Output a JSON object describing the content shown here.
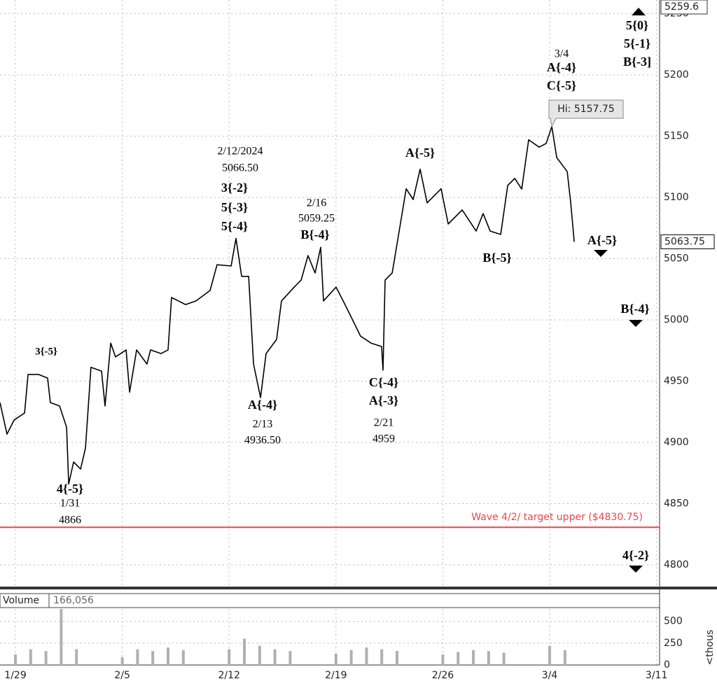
{
  "chart_data": [
    {
      "type": "line",
      "color": "#000000",
      "grid": true,
      "x": [
        -1.01,
        -0.55,
        -0.09,
        0.6,
        0.83,
        1.51,
        2.11,
        2.29,
        2.89,
        3.35,
        3.49,
        3.81,
        4.27,
        4.59,
        4.95,
        5.64,
        5.87,
        6.24,
        6.56,
        7.25,
        7.48,
        7.94,
        8.62,
        8.85,
        9.54,
        10.0,
        10.23,
        11.15,
        11.83,
        12.75,
        13.21,
        14.13,
        14.45,
        14.82,
        15.28,
        15.6,
        16.06,
        16.42,
        17.11,
        17.43,
        18.26,
        18.72,
        19.17,
        19.63,
        20.0,
        20.18,
        21.01,
        21.47,
        21.93,
        22.61,
        23.3,
        23.99,
        24.08,
        24.22,
        24.68,
        25.14,
        25.6,
        26.06,
        26.51,
        26.97,
        27.89,
        28.35,
        29.27,
        30.18,
        30.64,
        31.1,
        31.79,
        32.25,
        32.71,
        33.17,
        33.62,
        34.31,
        34.77,
        35.14,
        35.46,
        36.15,
        36.38,
        36.61
      ],
      "values": [
        4932.5,
        4906.75,
        4918.25,
        4924,
        4955.5,
        4955.5,
        4952.5,
        4932.5,
        4929.75,
        4912.5,
        4866,
        4884,
        4878.25,
        4895.5,
        4961.25,
        4958.25,
        4929.75,
        4981,
        4969.75,
        4975.5,
        4941,
        4975.5,
        4964,
        4975.5,
        4972.5,
        4975.5,
        5018.25,
        5012.5,
        5015.5,
        5024,
        5045,
        5044,
        5066.5,
        5035.5,
        5035.5,
        4964,
        4936.5,
        4972.5,
        4984,
        5015.5,
        5026.75,
        5032.5,
        5052.5,
        5038.25,
        5059.25,
        5015.5,
        5026.75,
        5015.5,
        5004,
        4986.75,
        4981,
        4978.25,
        4959,
        5032.5,
        5038.25,
        5072.5,
        5107,
        5098.25,
        5123,
        5095.5,
        5107,
        5078.25,
        5089.75,
        5072.5,
        5086.75,
        5072.5,
        5069.75,
        5109.75,
        5115.5,
        5106.75,
        5147,
        5141,
        5144,
        5157.75,
        5132.5,
        5121,
        5095.5,
        5063.75
      ],
      "xlim": [
        -1.01,
        42.2
      ],
      "xticks": [
        {
          "value": 0,
          "label": "1/29"
        },
        {
          "value": 7,
          "label": "2/5"
        },
        {
          "value": 14,
          "label": "2/12"
        },
        {
          "value": 21,
          "label": "2/19"
        },
        {
          "value": 28,
          "label": "2/26"
        },
        {
          "value": 35,
          "label": "3/4"
        },
        {
          "value": 42,
          "label": "3/11"
        }
      ],
      "ylim": [
        4782.3,
        5261.1
      ],
      "yticks": [
        4800,
        4850,
        4900,
        4950,
        5000,
        5050,
        5100,
        5150,
        5200,
        5250
      ],
      "axis_top_value": 5259.6,
      "hi_label": "Hi: 5157.75",
      "target_line": {
        "value": 4830.75,
        "label": "Wave 4/2/ target upper ($4830.75)",
        "color": "#e8464f"
      },
      "annotations": [
        [
          "3{-5}"
        ],
        [
          "4{-5}",
          "1/31",
          "4866"
        ],
        [
          "2/12/2024",
          "5066.50"
        ],
        [
          "3{-2}",
          "5{-3}",
          "5{-4}"
        ],
        [
          "2/16",
          "5059.25"
        ],
        [
          "B{-4}"
        ],
        [
          "A{-4}",
          "2/13",
          "4936.50"
        ],
        [
          "C{-4}",
          "A{-3}",
          "2/21",
          "4959"
        ],
        [
          "A{-5}"
        ],
        [
          "B{-5}"
        ],
        [
          "3/4",
          "A{-4}",
          "C{-5}"
        ],
        [
          "5{0}",
          "5{-1}",
          "B{-3]"
        ],
        [
          "A{-5}"
        ],
        [
          "B{-4}"
        ],
        [
          "4{-2}"
        ]
      ]
    },
    {
      "type": "bar",
      "title": "Volume",
      "header_value": "166,056",
      "unit_label": "<thous",
      "color": "#b0b0b0",
      "grid": true,
      "x": [
        0,
        1,
        2,
        3,
        4,
        7,
        8,
        9,
        10,
        11,
        14,
        15,
        16,
        17,
        18,
        21,
        22,
        23,
        24,
        25,
        28,
        29,
        30,
        31,
        32,
        35,
        36
      ],
      "values": [
        120,
        180,
        160,
        640,
        180,
        90,
        180,
        160,
        200,
        170,
        180,
        300,
        220,
        180,
        160,
        130,
        170,
        200,
        180,
        160,
        120,
        150,
        170,
        160,
        140,
        220,
        170
      ],
      "xlim": [
        -1.01,
        42.2
      ],
      "ylim": [
        0,
        640
      ],
      "yticks": [
        0,
        250,
        500
      ]
    }
  ]
}
